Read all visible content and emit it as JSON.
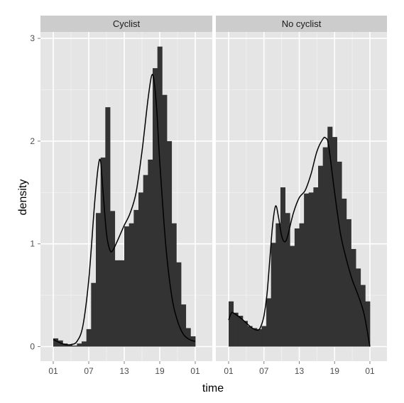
{
  "chart_data": {
    "type": "bar",
    "xlabel": "time",
    "ylabel": "density",
    "x_ticks": [
      "01",
      "07",
      "13",
      "19",
      "01"
    ],
    "y_ticks": [
      "0",
      "1",
      "2",
      "3"
    ],
    "ylim": [
      0,
      3.2
    ],
    "xlim": [
      0,
      24
    ],
    "bin_width_hours": 0.8,
    "grid": true,
    "colors": {
      "panel_background": "#e5e5e5",
      "grid": "#ffffff",
      "strip_background": "#cccccc",
      "bars": "#333333",
      "density_line": "#000000"
    },
    "panels": [
      {
        "name": "Cyclist",
        "histogram": [
          0.08,
          0.06,
          0.03,
          0.02,
          0.01,
          0.03,
          0.05,
          0.17,
          0.62,
          1.3,
          1.84,
          2.33,
          1.32,
          0.84,
          0.84,
          1.17,
          1.2,
          1.33,
          1.5,
          1.67,
          1.82,
          2.71,
          2.92,
          2.45,
          2.0,
          1.2,
          0.82,
          0.41,
          0.18,
          0.1
        ],
        "density": [
          [
            0,
            0.07
          ],
          [
            1,
            0.04
          ],
          [
            2,
            0.02
          ],
          [
            3,
            0.02
          ],
          [
            4,
            0.05
          ],
          [
            5,
            0.2
          ],
          [
            6,
            0.65
          ],
          [
            7,
            1.4
          ],
          [
            7.6,
            1.75
          ],
          [
            8,
            1.8
          ],
          [
            8.5,
            1.45
          ],
          [
            9,
            1.1
          ],
          [
            9.5,
            0.95
          ],
          [
            10,
            0.93
          ],
          [
            11,
            1.05
          ],
          [
            12,
            1.18
          ],
          [
            13,
            1.3
          ],
          [
            14,
            1.5
          ],
          [
            15,
            1.9
          ],
          [
            16,
            2.4
          ],
          [
            16.6,
            2.63
          ],
          [
            17,
            2.6
          ],
          [
            17.5,
            2.3
          ],
          [
            18,
            1.8
          ],
          [
            19,
            1.0
          ],
          [
            20,
            0.5
          ],
          [
            21,
            0.25
          ],
          [
            22,
            0.12
          ],
          [
            23,
            0.07
          ],
          [
            24,
            0.05
          ]
        ]
      },
      {
        "name": "No cyclist",
        "histogram": [
          0.44,
          0.33,
          0.3,
          0.25,
          0.2,
          0.18,
          0.17,
          0.2,
          0.47,
          1.01,
          1.2,
          1.55,
          1.3,
          0.98,
          1.15,
          1.2,
          1.49,
          1.5,
          1.55,
          1.76,
          1.94,
          2.14,
          2.04,
          1.8,
          1.44,
          1.24,
          0.95,
          0.76,
          0.6,
          0.44
        ],
        "density": [
          [
            0,
            0.26
          ],
          [
            0.5,
            0.33
          ],
          [
            1,
            0.32
          ],
          [
            2,
            0.28
          ],
          [
            3,
            0.23
          ],
          [
            4,
            0.18
          ],
          [
            5,
            0.16
          ],
          [
            5.5,
            0.2
          ],
          [
            6,
            0.3
          ],
          [
            6.5,
            0.5
          ],
          [
            7,
            0.85
          ],
          [
            7.5,
            1.2
          ],
          [
            8,
            1.37
          ],
          [
            8.5,
            1.25
          ],
          [
            9,
            1.08
          ],
          [
            9.5,
            1.02
          ],
          [
            10,
            1.07
          ],
          [
            11,
            1.3
          ],
          [
            12,
            1.45
          ],
          [
            13,
            1.52
          ],
          [
            14,
            1.68
          ],
          [
            15,
            1.9
          ],
          [
            16,
            2.02
          ],
          [
            16.5,
            2.03
          ],
          [
            17,
            1.95
          ],
          [
            18,
            1.5
          ],
          [
            19,
            1.1
          ],
          [
            20,
            0.85
          ],
          [
            21,
            0.65
          ],
          [
            22,
            0.5
          ],
          [
            23,
            0.32
          ],
          [
            24,
            0.0
          ]
        ]
      }
    ]
  }
}
